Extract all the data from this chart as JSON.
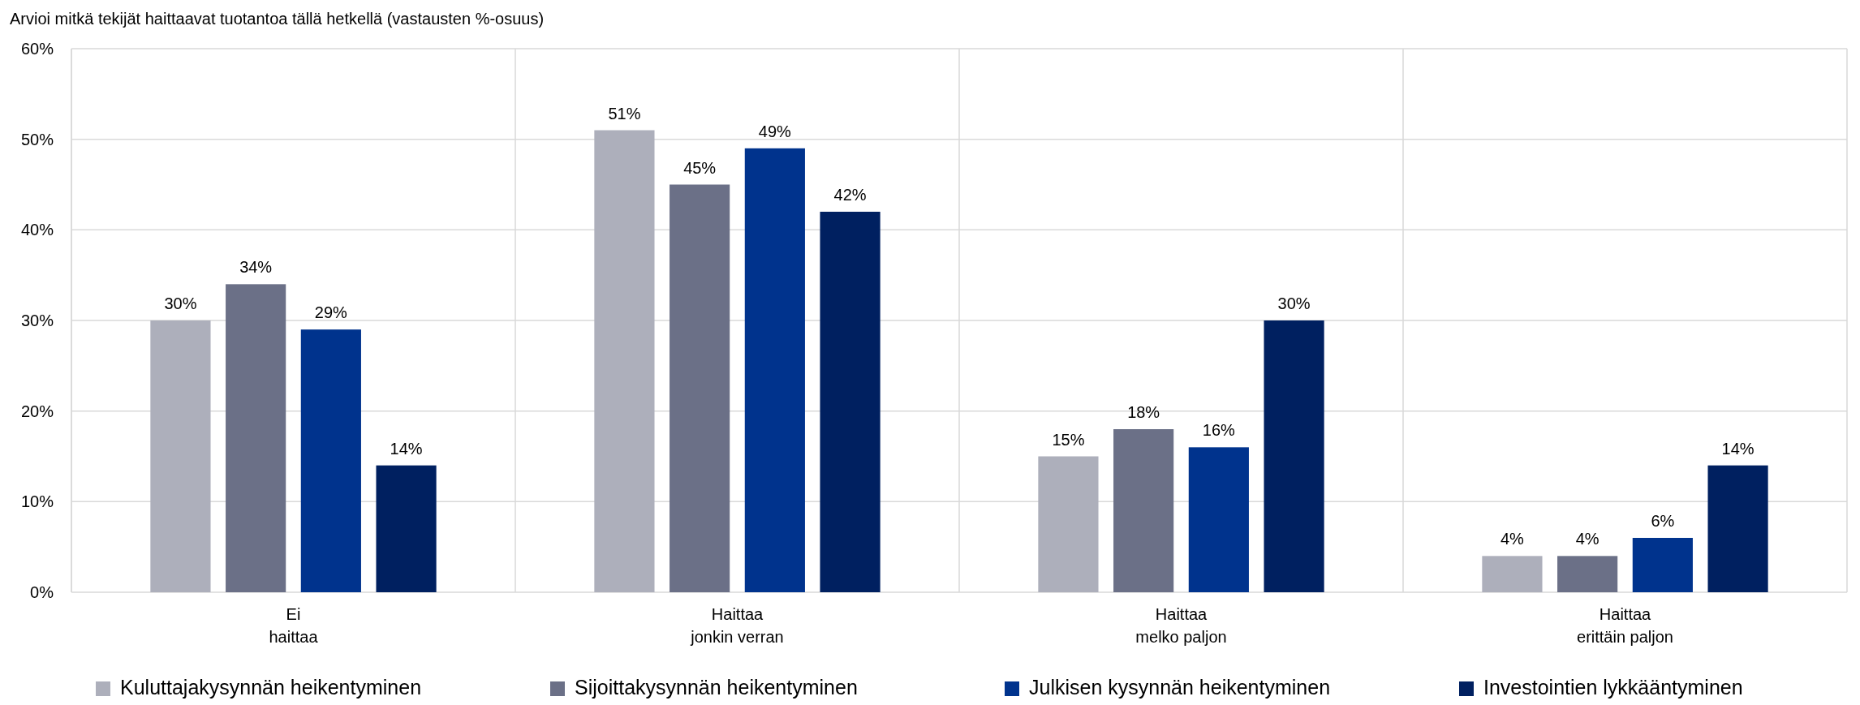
{
  "chart_data": {
    "type": "bar",
    "title": "Arvioi mitkä tekijät haittaavat tuotantoa tällä hetkellä (vastausten %-osuus)",
    "categories": [
      "Ei\nhaittaa",
      "Haittaa\njonkin verran",
      "Haittaa\nmelko paljon",
      "Haittaa\nerittäin paljon"
    ],
    "series": [
      {
        "name": "Kuluttajakysynnän heikentyminen",
        "color": "#adafbb",
        "values": [
          30,
          51,
          15,
          4
        ],
        "value_labels": [
          "30%",
          "51%",
          "15%",
          "4%"
        ]
      },
      {
        "name": "Sijoittakysynnän heikentyminen",
        "color": "#6b7087",
        "values": [
          34,
          45,
          18,
          4
        ],
        "value_labels": [
          "34%",
          "45%",
          "18%",
          "4%"
        ]
      },
      {
        "name": "Julkisen kysynnän heikentyminen",
        "color": "#00338d",
        "values": [
          29,
          49,
          16,
          6
        ],
        "value_labels": [
          "29%",
          "49%",
          "16%",
          "6%"
        ]
      },
      {
        "name": "Investointien lykkääntyminen",
        "color": "#002060",
        "values": [
          14,
          42,
          30,
          14
        ],
        "value_labels": [
          "14%",
          "42%",
          "30%",
          "14%"
        ]
      }
    ],
    "ylim": [
      0,
      60
    ],
    "yticks": [
      {
        "value": 0,
        "label": "0%"
      },
      {
        "value": 10,
        "label": "10%"
      },
      {
        "value": 20,
        "label": "20%"
      },
      {
        "value": 30,
        "label": "30%"
      },
      {
        "value": 40,
        "label": "40%"
      },
      {
        "value": 50,
        "label": "50%"
      },
      {
        "value": 60,
        "label": "60%"
      }
    ],
    "grid": true,
    "legend": "bottom"
  }
}
